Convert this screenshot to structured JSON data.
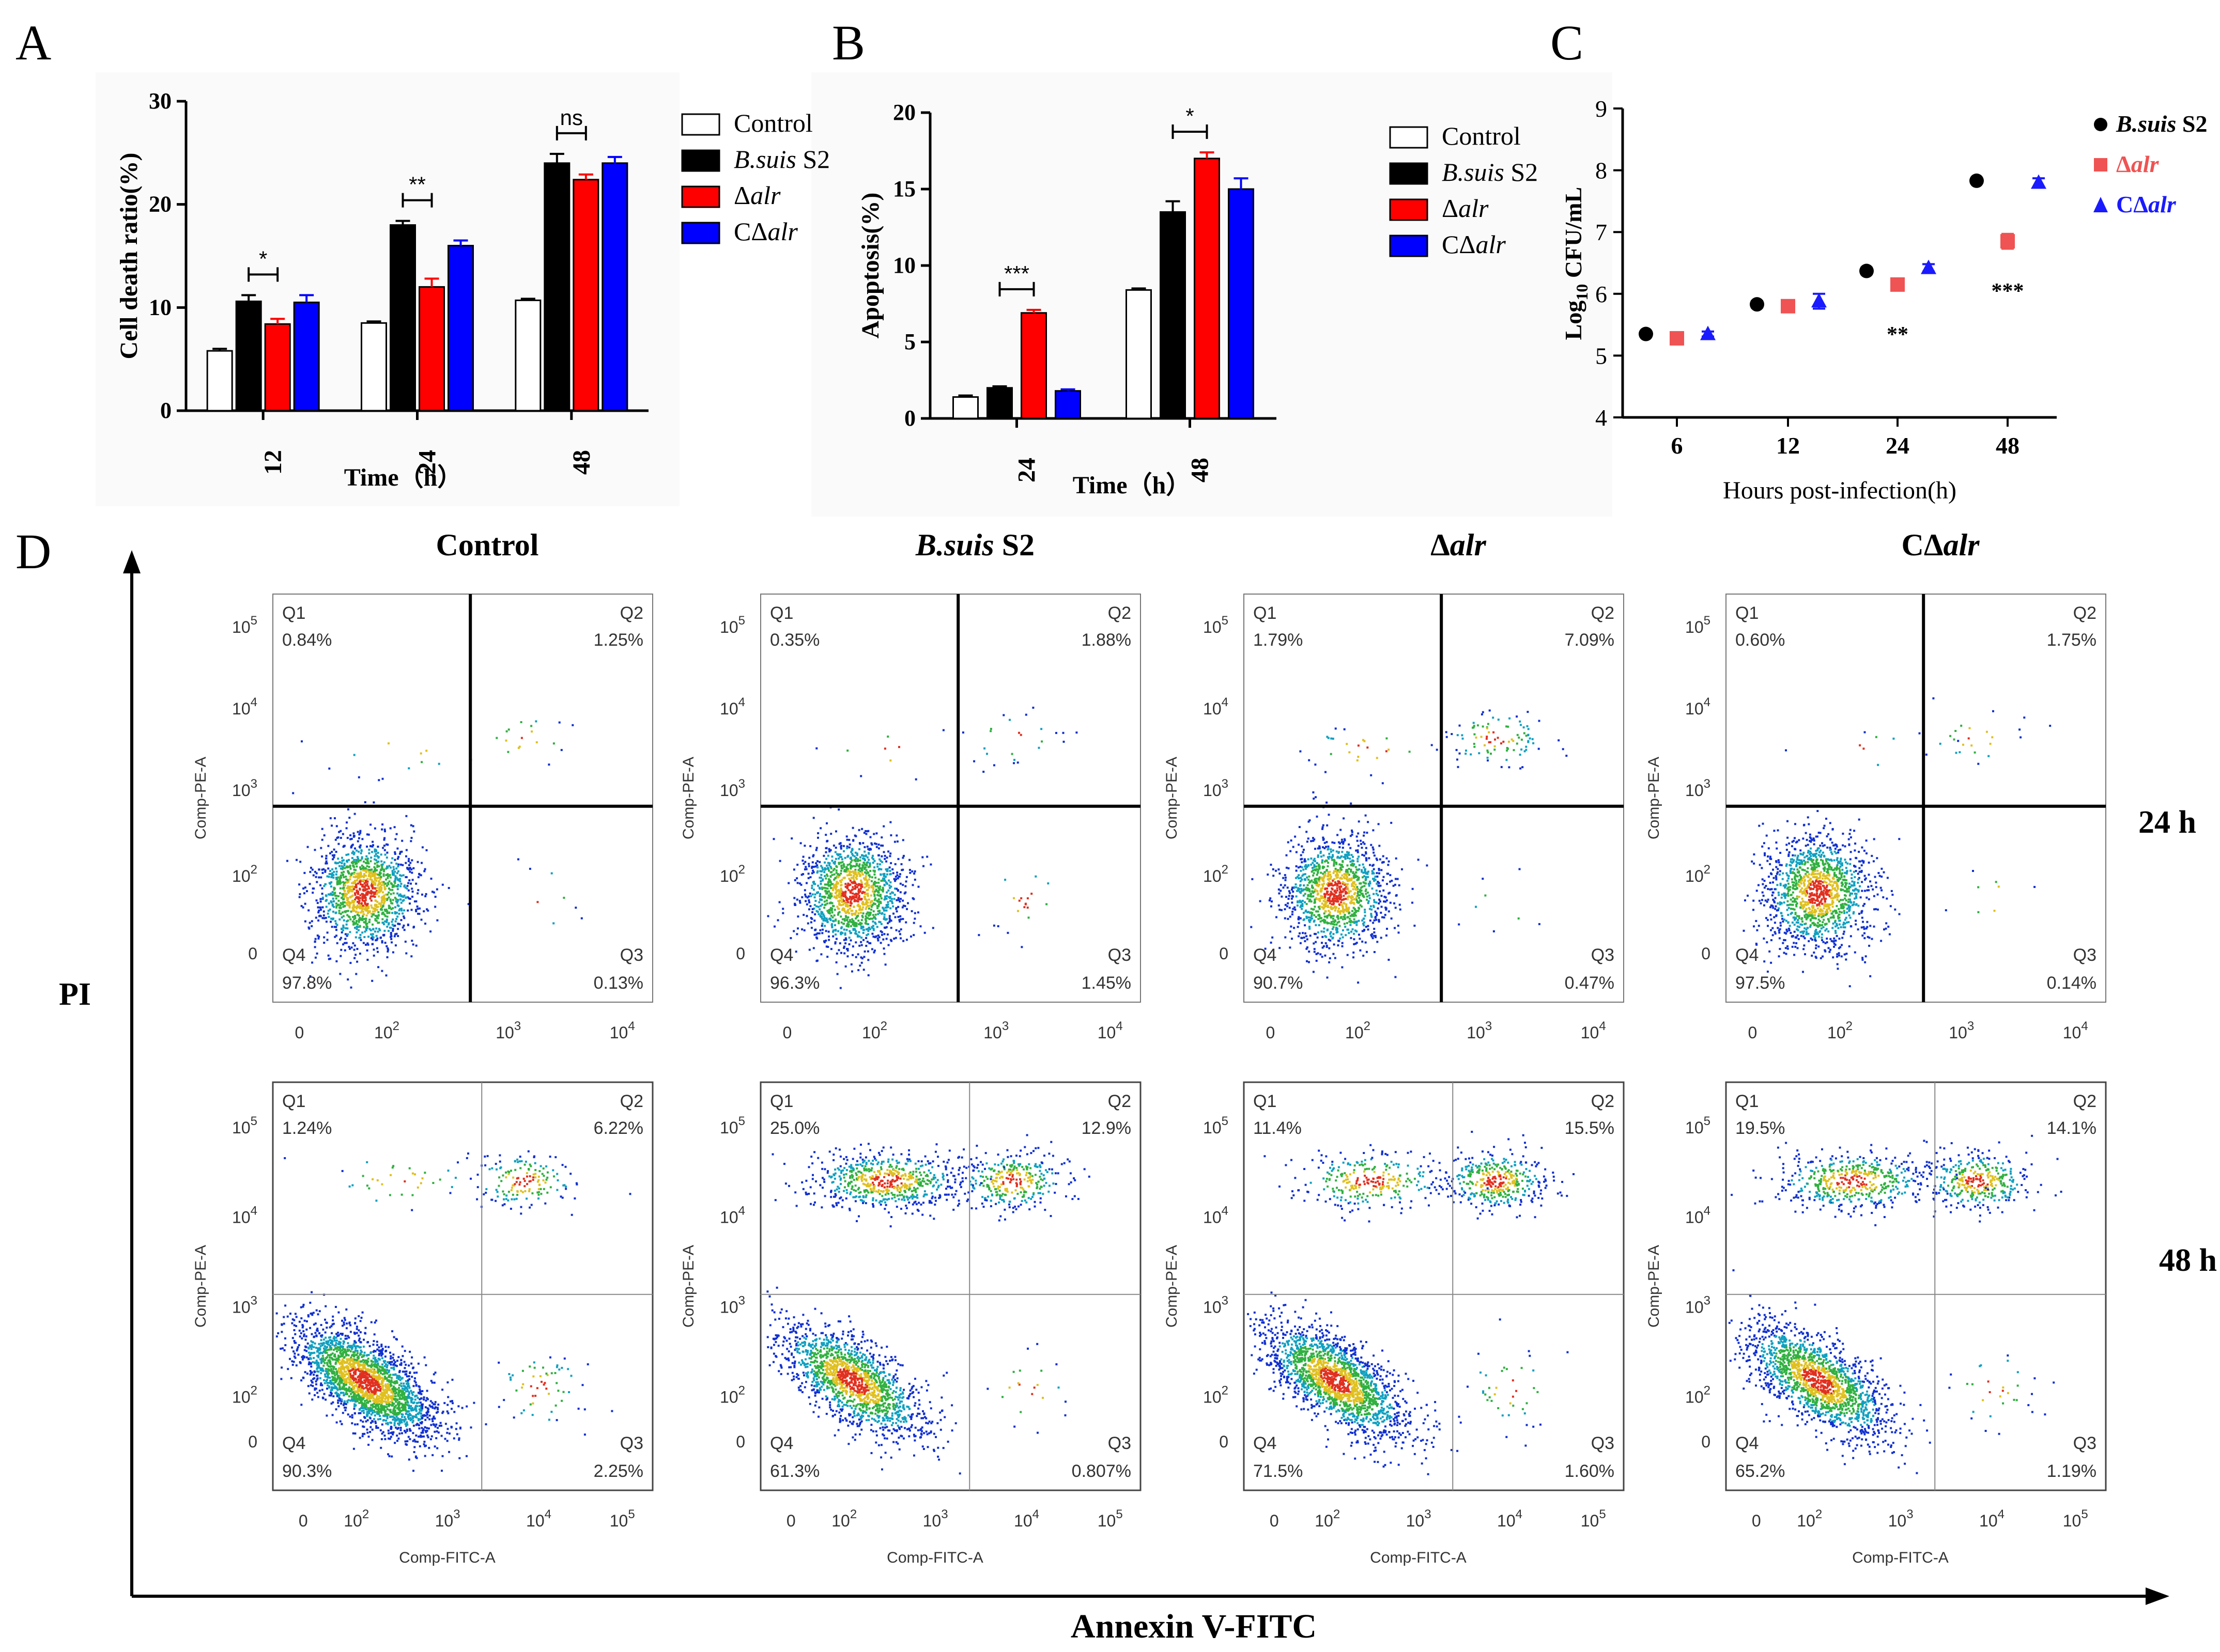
{
  "panel_labels": {
    "A": "A",
    "B": "B",
    "C": "C",
    "D": "D"
  },
  "colors": {
    "control": "#ffffff",
    "s2": "#000000",
    "dalr": "#ff0000",
    "cdalr": "#0000ff",
    "dalr_c": "#ef5353",
    "cdalr_c": "#1a1aff"
  },
  "chart_data": [
    {
      "id": "A",
      "type": "bar",
      "categories": [
        "12",
        "24",
        "48"
      ],
      "series": [
        {
          "name": "Control",
          "values": [
            5.8,
            8.5,
            10.7
          ],
          "errors": [
            0.2,
            0.15,
            0.15
          ]
        },
        {
          "name": "B.suis S2",
          "values": [
            10.6,
            18.0,
            24.0
          ],
          "errors": [
            0.6,
            0.4,
            0.9
          ]
        },
        {
          "name": "Δalr",
          "values": [
            8.4,
            12.0,
            22.4
          ],
          "errors": [
            0.5,
            0.8,
            0.5
          ]
        },
        {
          "name": "CΔalr",
          "values": [
            10.5,
            16.0,
            24.0
          ],
          "errors": [
            0.7,
            0.5,
            0.6
          ]
        }
      ],
      "ylim": [
        0,
        30
      ],
      "yticks": [
        "0",
        "10",
        "20",
        "30"
      ],
      "ylabel": "Cell death ratio(%)",
      "xlabel": "Time（h）",
      "significance": [
        "*",
        "**",
        "ns"
      ],
      "legend_position": "right"
    },
    {
      "id": "B",
      "type": "bar",
      "categories": [
        "24",
        "48"
      ],
      "series": [
        {
          "name": "Control",
          "values": [
            1.4,
            8.4
          ],
          "errors": [
            0.1,
            0.1
          ]
        },
        {
          "name": "B.suis S2",
          "values": [
            2.0,
            13.5
          ],
          "errors": [
            0.1,
            0.7
          ]
        },
        {
          "name": "Δalr",
          "values": [
            6.9,
            17.0
          ],
          "errors": [
            0.2,
            0.4
          ]
        },
        {
          "name": "CΔalr",
          "values": [
            1.8,
            15.0
          ],
          "errors": [
            0.1,
            0.7
          ]
        }
      ],
      "ylim": [
        0,
        20
      ],
      "yticks": [
        "0",
        "5",
        "10",
        "15",
        "20"
      ],
      "ylabel": "Apoptosis(%)",
      "xlabel": "Time（h）",
      "significance": [
        "***",
        "*"
      ],
      "legend_position": "right"
    },
    {
      "id": "C",
      "type": "scatter",
      "categories": [
        "6",
        "12",
        "24",
        "48"
      ],
      "series": [
        {
          "name": "B.suis S2",
          "values": [
            5.35,
            5.83,
            6.37,
            7.83
          ],
          "errors": [
            0.02,
            0.05,
            0.05,
            0.03
          ]
        },
        {
          "name": "Δalr",
          "values": [
            5.28,
            5.8,
            6.15,
            6.85
          ],
          "errors": [
            0.03,
            0.05,
            0.05,
            0.12
          ]
        },
        {
          "name": "CΔalr",
          "values": [
            5.35,
            5.88,
            6.42,
            7.8
          ],
          "errors": [
            0.04,
            0.12,
            0.06,
            0.07
          ]
        }
      ],
      "ylim": [
        4,
        9
      ],
      "yticks": [
        "4",
        "5",
        "6",
        "7",
        "8",
        "9"
      ],
      "ylabel": "Log10 CFU/mL",
      "xlabel": "Hours post-infection(h)",
      "significance": [
        "**",
        "***"
      ],
      "legend_position": "top-right"
    },
    {
      "id": "D",
      "type": "scatter",
      "description_type": "flow cytometry quadrant plots",
      "columns": [
        "Control",
        "B.suis S2",
        "Δalr",
        "CΔalr"
      ],
      "rows": [
        "24 h",
        "48 h"
      ],
      "x_axis": "Annexin V-FITC",
      "y_axis": "PI",
      "plot_xlabel": "Comp-FITC-A",
      "plot_ylabel": "Comp-PE-A",
      "quadrants": [
        {
          "row": "24 h",
          "column": "Control",
          "Q1": "0.84%",
          "Q2": "1.25%",
          "Q3": "0.13%",
          "Q4": "97.8%"
        },
        {
          "row": "24 h",
          "column": "B.suis S2",
          "Q1": "0.35%",
          "Q2": "1.88%",
          "Q3": "1.45%",
          "Q4": "96.3%"
        },
        {
          "row": "24 h",
          "column": "Δalr",
          "Q1": "1.79%",
          "Q2": "7.09%",
          "Q3": "0.47%",
          "Q4": "90.7%"
        },
        {
          "row": "24 h",
          "column": "CΔalr",
          "Q1": "0.60%",
          "Q2": "1.75%",
          "Q3": "0.14%",
          "Q4": "97.5%"
        },
        {
          "row": "48 h",
          "column": "Control",
          "Q1": "1.24%",
          "Q2": "6.22%",
          "Q3": "2.25%",
          "Q4": "90.3%"
        },
        {
          "row": "48 h",
          "column": "B.suis S2",
          "Q1": "25.0%",
          "Q2": "12.9%",
          "Q3": "0.807%",
          "Q4": "61.3%"
        },
        {
          "row": "48 h",
          "column": "Δalr",
          "Q1": "11.4%",
          "Q2": "15.5%",
          "Q3": "1.60%",
          "Q4": "71.5%"
        },
        {
          "row": "48 h",
          "column": "CΔalr",
          "Q1": "19.5%",
          "Q2": "14.1%",
          "Q3": "1.19%",
          "Q4": "65.2%"
        }
      ]
    }
  ]
}
